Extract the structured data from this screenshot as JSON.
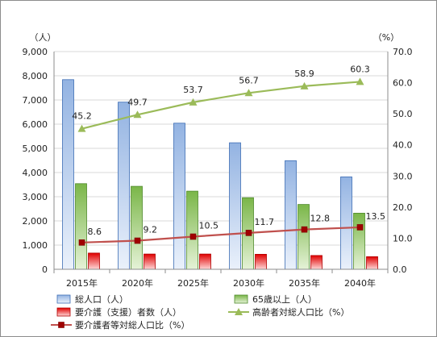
{
  "chart_data": {
    "type": "bar",
    "categories": [
      "2015年",
      "2020年",
      "2025年",
      "2030年",
      "2035年",
      "2040年"
    ],
    "left_axis": {
      "unit": "（人）",
      "ylim": [
        0,
        9000
      ],
      "ticks": [
        "0",
        "1,000",
        "2,000",
        "3,000",
        "4,000",
        "5,000",
        "6,000",
        "7,000",
        "8,000",
        "9,000"
      ]
    },
    "right_axis": {
      "unit": "（%）",
      "ylim": [
        0,
        70
      ],
      "ticks": [
        "0.0",
        "10.0",
        "20.0",
        "30.0",
        "40.0",
        "50.0",
        "60.0",
        "70.0"
      ]
    },
    "series": [
      {
        "name": "総人口（人）",
        "type": "bar",
        "axis": "left",
        "color": "#4f81bd",
        "values": [
          7840,
          6910,
          6040,
          5230,
          4490,
          3820
        ]
      },
      {
        "name": "65歳以上（人）",
        "type": "bar",
        "axis": "left",
        "color": "#70ad47",
        "values": [
          3540,
          3430,
          3230,
          2960,
          2680,
          2320
        ]
      },
      {
        "name": "要介護（支援）者数（人）",
        "type": "bar",
        "axis": "left",
        "color": "#e00000",
        "values": [
          670,
          630,
          630,
          620,
          570,
          520
        ]
      },
      {
        "name": "高齢者対総人口比（%）",
        "type": "line",
        "axis": "right",
        "color": "#9bbb59",
        "marker": "triangle",
        "values": [
          45.2,
          49.7,
          53.7,
          56.7,
          58.9,
          60.3
        ],
        "labels": [
          "45.2",
          "49.7",
          "53.7",
          "56.7",
          "58.9",
          "60.3"
        ]
      },
      {
        "name": "要介護者等対総人口比（%）",
        "type": "line",
        "axis": "right",
        "color": "#c0504d",
        "marker": "square",
        "values": [
          8.6,
          9.2,
          10.5,
          11.7,
          12.8,
          13.5
        ],
        "labels": [
          "8.6",
          "9.2",
          "10.5",
          "11.7",
          "12.8",
          "13.5"
        ]
      }
    ],
    "grid": true,
    "legend_position": "bottom"
  }
}
